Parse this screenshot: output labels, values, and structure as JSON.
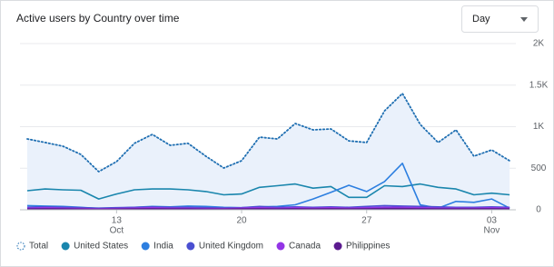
{
  "chart_data": {
    "type": "line",
    "title": "Active users by Country over time",
    "dropdown": "Day",
    "categories": [
      null,
      null,
      null,
      null,
      null,
      "13",
      null,
      null,
      null,
      null,
      null,
      null,
      "20",
      null,
      null,
      null,
      null,
      null,
      null,
      "27",
      null,
      null,
      null,
      null,
      null,
      null,
      "03",
      null
    ],
    "x_months": [
      null,
      null,
      null,
      null,
      null,
      "Oct",
      null,
      null,
      null,
      null,
      null,
      null,
      null,
      null,
      null,
      null,
      null,
      null,
      null,
      null,
      null,
      null,
      null,
      null,
      null,
      null,
      "Nov",
      null
    ],
    "ylim": [
      0,
      2000
    ],
    "yticks": [
      0,
      500,
      {
        "value": 1000,
        "label": "1K"
      },
      {
        "value": 1500,
        "label": "1.5K"
      },
      {
        "value": 2000,
        "label": "2K"
      }
    ],
    "grid": true,
    "series": [
      {
        "name": "Total",
        "color": "#1f6fb2",
        "style": "dotted",
        "area": true,
        "area_color": "#eaf1fb",
        "values": [
          852,
          810,
          765,
          667,
          459,
          580,
          800,
          907,
          776,
          800,
          645,
          503,
          590,
          874,
          852,
          1038,
          962,
          973,
          830,
          810,
          1190,
          1400,
          1027,
          810,
          962,
          645,
          720,
          590
        ]
      },
      {
        "name": "United States",
        "color": "#1a86ad",
        "values": [
          230,
          250,
          240,
          235,
          130,
          190,
          240,
          250,
          250,
          240,
          220,
          180,
          190,
          270,
          290,
          310,
          260,
          280,
          150,
          150,
          290,
          280,
          310,
          270,
          250,
          180,
          200,
          180
        ]
      },
      {
        "name": "India",
        "color": "#2d7fe0",
        "values": [
          50,
          45,
          40,
          30,
          15,
          20,
          30,
          40,
          35,
          45,
          40,
          30,
          25,
          35,
          40,
          60,
          130,
          210,
          295,
          220,
          340,
          560,
          60,
          20,
          100,
          90,
          130,
          20
        ]
      },
      {
        "name": "United Kingdom",
        "color": "#4a4fd1",
        "values": [
          30,
          35,
          30,
          25,
          20,
          25,
          30,
          35,
          30,
          30,
          25,
          20,
          25,
          40,
          30,
          35,
          30,
          35,
          30,
          40,
          50,
          45,
          40,
          35,
          30,
          30,
          35,
          30
        ]
      },
      {
        "name": "Canada",
        "color": "#9334e6",
        "values": [
          20,
          25,
          20,
          15,
          10,
          15,
          20,
          25,
          20,
          20,
          15,
          15,
          20,
          25,
          20,
          25,
          20,
          25,
          20,
          25,
          30,
          30,
          25,
          20,
          20,
          20,
          25,
          20
        ]
      },
      {
        "name": "Philippines",
        "color": "#5b1a8f",
        "values": [
          10,
          12,
          10,
          8,
          6,
          8,
          10,
          12,
          10,
          10,
          8,
          8,
          10,
          12,
          10,
          12,
          10,
          12,
          10,
          12,
          14,
          14,
          12,
          10,
          10,
          10,
          12,
          10
        ]
      }
    ]
  }
}
